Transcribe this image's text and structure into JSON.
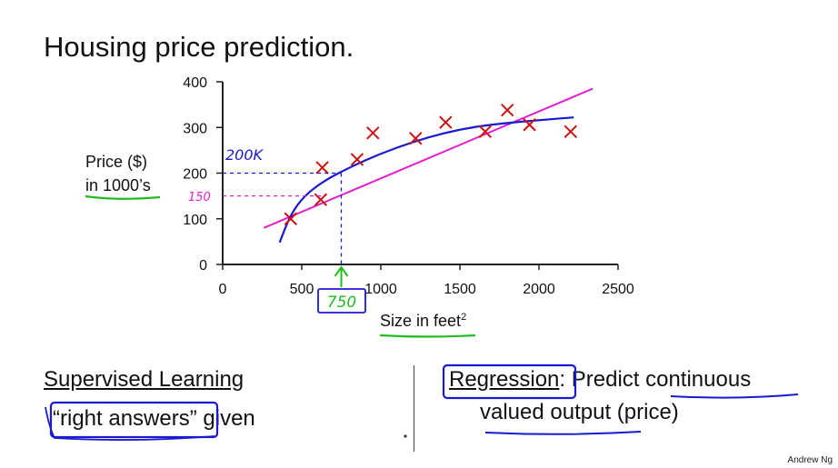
{
  "slide": {
    "title": "Housing price prediction.",
    "footer_credit": "Andrew Ng"
  },
  "annotations": {
    "label_200k": "200K",
    "label_150": "150",
    "label_750": "750"
  },
  "left_panel": {
    "heading": "Supervised Learning",
    "line_boxed": "“right answers”",
    "line_rest": " given"
  },
  "right_panel": {
    "heading_boxed": "Regression",
    "heading_rest": ": Predict continuous",
    "line2_a": "valued output",
    "line2_b": " (price)"
  },
  "colors": {
    "data_marker": "#cc1111",
    "linear_fit": "#e020d0",
    "curve_fit": "#1a1ad0",
    "green_annotation": "#22bb22",
    "blue_ink": "#1a1ad0"
  },
  "chart_data": {
    "type": "scatter",
    "ylabel_lines": [
      "Price ($)",
      "in 1000’s"
    ],
    "xlabel": "Size in feet",
    "xlabel_sup": "2",
    "xlim": [
      0,
      2500
    ],
    "ylim": [
      0,
      400
    ],
    "xticks": [
      0,
      500,
      1000,
      1500,
      2000,
      2500
    ],
    "yticks": [
      0,
      100,
      200,
      300,
      400
    ],
    "grid": false,
    "points": [
      {
        "x": 430,
        "y": 100
      },
      {
        "x": 620,
        "y": 142
      },
      {
        "x": 630,
        "y": 212
      },
      {
        "x": 850,
        "y": 230
      },
      {
        "x": 950,
        "y": 288
      },
      {
        "x": 1220,
        "y": 276
      },
      {
        "x": 1410,
        "y": 311
      },
      {
        "x": 1660,
        "y": 291
      },
      {
        "x": 1800,
        "y": 338
      },
      {
        "x": 1940,
        "y": 306
      },
      {
        "x": 2200,
        "y": 291
      }
    ],
    "linear_fit": {
      "x": [
        260,
        2340
      ],
      "y": [
        80,
        385
      ]
    },
    "curve_fit": {
      "x": [
        360,
        430,
        520,
        650,
        800,
        1000,
        1200,
        1400,
        1600,
        1800,
        2000,
        2220
      ],
      "y": [
        48,
        110,
        152,
        185,
        212,
        243,
        268,
        288,
        302,
        310,
        316,
        322
      ]
    },
    "annotation_x": 750,
    "annotation_y_curve": 200,
    "annotation_y_line": 150
  }
}
